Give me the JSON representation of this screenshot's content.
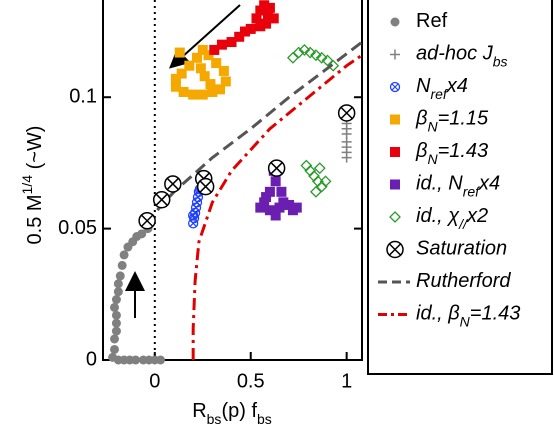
{
  "chart_data": {
    "type": "scatter",
    "xlabel": [
      "R",
      "bs",
      "(p) f",
      "bs"
    ],
    "ylabel": [
      "0.5 M",
      "1/4",
      " (~W)"
    ],
    "xlim": [
      -0.27,
      1.08
    ],
    "ylim": [
      0,
      0.137
    ],
    "xticks": [
      0,
      0.5,
      1
    ],
    "yticks": [
      0,
      0.05,
      0.1
    ],
    "vline": 0,
    "series": [
      {
        "name": [
          "Ref"
        ],
        "marker": "circle",
        "color": "#808080",
        "x": [
          0,
          0.03,
          -0.03,
          -0.06,
          -0.1,
          -0.13,
          -0.16,
          -0.19,
          -0.22,
          -0.21,
          -0.21,
          -0.2,
          -0.2,
          -0.2,
          -0.21,
          -0.2,
          -0.19,
          -0.19,
          -0.18,
          -0.17,
          -0.16,
          -0.14,
          -0.115,
          -0.094,
          -0.068,
          -0.036
        ],
        "y": [
          0,
          0,
          0,
          0,
          0,
          0,
          0,
          0,
          0.001,
          0.004,
          0.008,
          0.011,
          0.014,
          0.017,
          0.02,
          0.023,
          0.026,
          0.029,
          0.032,
          0.036,
          0.04,
          0.043,
          0.045,
          0.047,
          0.048,
          0.05
        ]
      },
      {
        "name": [
          "ad-hoc J",
          "bs"
        ],
        "marker": "plus",
        "color": "#808080",
        "x": [
          1,
          1,
          1,
          1,
          1,
          1,
          1
        ],
        "y": [
          0.09,
          0.088,
          0.086,
          0.083,
          0.081,
          0.079,
          0.077
        ]
      },
      {
        "name": [
          "N",
          "ref",
          "x4"
        ],
        "marker": "circle-cross",
        "color": "#2040ff",
        "x": [
          0.2,
          0.205,
          0.21,
          0.215,
          0.22,
          0.225,
          0.23,
          0.235,
          0.2
        ],
        "y": [
          0.052,
          0.054,
          0.056,
          0.058,
          0.06,
          0.062,
          0.064,
          0.065,
          0.055
        ]
      },
      {
        "name": [
          "β",
          "N",
          "=1.15"
        ],
        "marker": "square",
        "color": "#f5a800",
        "x": [
          0.11,
          0.15,
          0.2,
          0.25,
          0.3,
          0.34,
          0.37,
          0.36,
          0.32,
          0.28,
          0.25,
          0.22,
          0.18,
          0.14,
          0.11,
          0.24,
          0.26,
          0.29,
          0.13
        ],
        "y": [
          0.104,
          0.102,
          0.101,
          0.101,
          0.102,
          0.103,
          0.106,
          0.11,
          0.113,
          0.116,
          0.118,
          0.115,
          0.112,
          0.109,
          0.107,
          0.111,
          0.108,
          0.105,
          0.117
        ]
      },
      {
        "name": [
          "β",
          "N",
          "=1.43"
        ],
        "marker": "square",
        "color": "#e8000b",
        "x": [
          0.31,
          0.35,
          0.4,
          0.44,
          0.47,
          0.5,
          0.53,
          0.55,
          0.57,
          0.6,
          0.62,
          0.58,
          0.55,
          0.59
        ],
        "y": [
          0.118,
          0.12,
          0.121,
          0.123,
          0.125,
          0.126,
          0.13,
          0.133,
          0.135,
          0.134,
          0.13,
          0.128,
          0.127,
          0.131
        ]
      },
      {
        "name": [
          "id., N",
          "ref",
          "x4"
        ],
        "marker": "square",
        "color": "#6a1fb0",
        "x": [
          0.55,
          0.57,
          0.6,
          0.63,
          0.65,
          0.67,
          0.7,
          0.72,
          0.74,
          0.6,
          0.63,
          0.66,
          0.62,
          0.58
        ],
        "y": [
          0.058,
          0.06,
          0.057,
          0.055,
          0.058,
          0.06,
          0.059,
          0.057,
          0.058,
          0.064,
          0.068,
          0.064,
          0.072,
          0.062
        ]
      },
      {
        "name": [
          "id., χ",
          "//",
          "x2"
        ],
        "marker": "diamond",
        "color": "#2a9a2a",
        "x": [
          0.72,
          0.75,
          0.78,
          0.81,
          0.84,
          0.87,
          0.9,
          0.93,
          0.79,
          0.81,
          0.83,
          0.85,
          0.87,
          0.89,
          0.84,
          0.86
        ],
        "y": [
          0.115,
          0.117,
          0.118,
          0.117,
          0.116,
          0.115,
          0.114,
          0.112,
          0.074,
          0.072,
          0.07,
          0.068,
          0.066,
          0.068,
          0.064,
          0.073
        ]
      },
      {
        "name": [
          "Saturation"
        ],
        "marker": "circle-x",
        "color": "#000000",
        "x": [
          -0.04,
          0.036,
          0.094,
          0.255,
          0.265,
          0.635,
          1.0
        ],
        "y": [
          0.053,
          0.061,
          0.067,
          0.069,
          0.066,
          0.073,
          0.094
        ]
      },
      {
        "name": [
          "Rutherford"
        ],
        "line": "dash",
        "color": "#555555",
        "x": [
          -0.05,
          0.1,
          0.3,
          0.5,
          0.7,
          0.9,
          1.08
        ],
        "y": [
          0.052,
          0.064,
          0.077,
          0.088,
          0.1,
          0.111,
          0.121
        ]
      },
      {
        "name": [
          "id., β",
          "N",
          "=1.43"
        ],
        "line": "dashdot",
        "color": "#e00000",
        "x": [
          0.2,
          0.2,
          0.21,
          0.23,
          0.3,
          0.4,
          0.6,
          0.8,
          1.0,
          1.08
        ],
        "y": [
          0,
          0.012,
          0.03,
          0.045,
          0.06,
          0.072,
          0.088,
          0.1,
          0.112,
          0.116
        ]
      }
    ]
  }
}
